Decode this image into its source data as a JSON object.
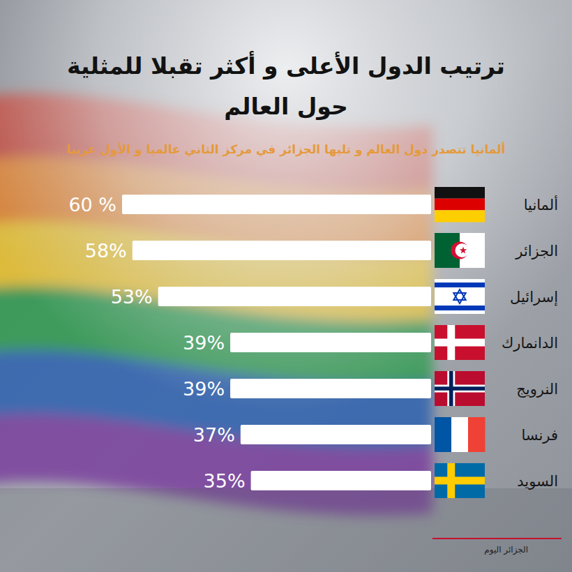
{
  "chart_data": {
    "type": "bar",
    "orientation": "horizontal",
    "title": "ترتيب الدول الأعلى و أكثر تقبلا للمثلية حول العالم",
    "subtitle": "ألمانيا تتصدر دول العالم و تليها الجزائر في مركز الثاني عالميا و الأول عربيا",
    "categories": [
      "ألمانيا",
      "الجزائر",
      "إسرائيل",
      "الدانمارك",
      "النرويج",
      "فرنسا",
      "السويد"
    ],
    "values": [
      60,
      58,
      53,
      39,
      39,
      37,
      35
    ],
    "value_labels": [
      "60 %",
      "58%",
      "53%",
      "39%",
      "39%",
      "37%",
      "35%"
    ],
    "xlim": [
      0,
      60
    ],
    "color": "#ffffff",
    "data_labels": true,
    "tick_labels": false,
    "grid": false,
    "source": "الجزائر اليوم"
  }
}
